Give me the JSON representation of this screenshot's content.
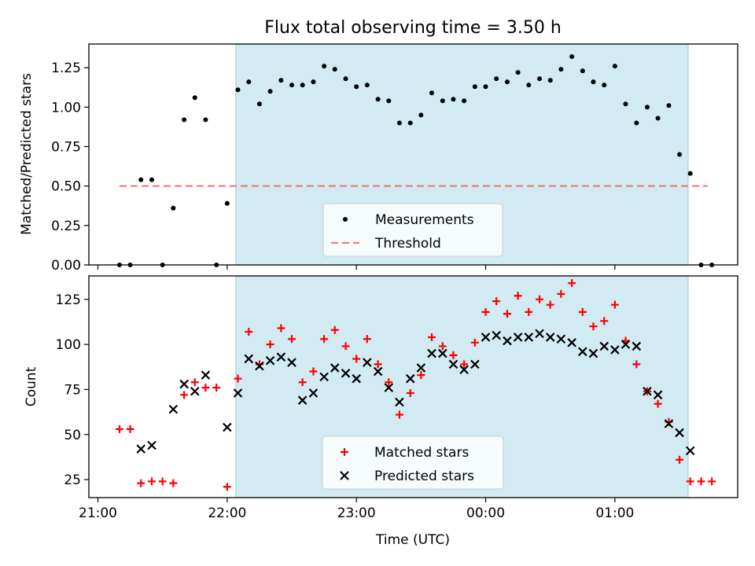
{
  "chart_data": [
    {
      "type": "scatter",
      "title": "Flux total observing time = 3.50 h",
      "xlabel": "",
      "ylabel": "Matched/Predicted stars",
      "xlim_hours": [
        20.93,
        25.95
      ],
      "ylim": [
        0,
        1.4
      ],
      "yticks": [
        0.0,
        0.25,
        0.5,
        0.75,
        1.0,
        1.25
      ],
      "ytick_labels": [
        "0.00",
        "0.25",
        "0.50",
        "0.75",
        "1.00",
        "1.25"
      ],
      "observing_window_hours": [
        22.067,
        25.567
      ],
      "threshold": {
        "name": "Threshold",
        "value": 0.5,
        "x_range_hours": [
          21.167,
          25.717
        ],
        "color": "#f08080"
      },
      "legend": {
        "position": "lower-center",
        "entries": [
          "Measurements",
          "Threshold"
        ]
      },
      "series": [
        {
          "name": "Measurements",
          "marker": "dot",
          "color": "#000000",
          "x": [
            21.167,
            21.25,
            21.333,
            21.417,
            21.5,
            21.583,
            21.667,
            21.75,
            21.833,
            21.917,
            22.0,
            22.083,
            22.167,
            22.25,
            22.333,
            22.417,
            22.5,
            22.583,
            22.667,
            22.75,
            22.833,
            22.917,
            23.0,
            23.083,
            23.167,
            23.25,
            23.333,
            23.417,
            23.5,
            23.583,
            23.667,
            23.75,
            23.833,
            23.917,
            24.0,
            24.083,
            24.167,
            24.25,
            24.333,
            24.417,
            24.5,
            24.583,
            24.667,
            24.75,
            24.833,
            24.917,
            25.0,
            25.083,
            25.167,
            25.25,
            25.333,
            25.417,
            25.5,
            25.583,
            25.667,
            25.75
          ],
          "y": [
            0.0,
            0.0,
            0.54,
            0.54,
            0.0,
            0.36,
            0.92,
            1.06,
            0.92,
            0.0,
            0.39,
            1.11,
            1.16,
            1.02,
            1.1,
            1.17,
            1.14,
            1.14,
            1.16,
            1.26,
            1.24,
            1.18,
            1.13,
            1.14,
            1.05,
            1.04,
            0.9,
            0.9,
            0.95,
            1.09,
            1.04,
            1.05,
            1.04,
            1.13,
            1.13,
            1.18,
            1.16,
            1.22,
            1.14,
            1.18,
            1.17,
            1.24,
            1.32,
            1.23,
            1.16,
            1.14,
            1.26,
            1.02,
            0.9,
            1.0,
            0.93,
            1.01,
            0.7,
            0.58,
            0.0,
            0.0
          ]
        }
      ]
    },
    {
      "type": "scatter",
      "title": "",
      "xlabel": "Time (UTC)",
      "ylabel": "Count",
      "xlim_hours": [
        20.93,
        25.95
      ],
      "ylim": [
        15,
        138
      ],
      "xticks_hours": [
        21,
        22,
        23,
        24,
        25
      ],
      "xtick_labels": [
        "21:00",
        "22:00",
        "23:00",
        "00:00",
        "01:00"
      ],
      "yticks": [
        25,
        50,
        75,
        100,
        125
      ],
      "ytick_labels": [
        "25",
        "50",
        "75",
        "100",
        "125"
      ],
      "observing_window_hours": [
        22.067,
        25.567
      ],
      "legend": {
        "position": "lower-center",
        "entries": [
          "Matched stars",
          "Predicted stars"
        ]
      },
      "series": [
        {
          "name": "Matched stars",
          "marker": "plus",
          "color": "#ff0000",
          "x": [
            21.167,
            21.25,
            21.333,
            21.417,
            21.5,
            21.583,
            21.667,
            21.75,
            21.833,
            21.917,
            22.0,
            22.083,
            22.167,
            22.25,
            22.333,
            22.417,
            22.5,
            22.583,
            22.667,
            22.75,
            22.833,
            22.917,
            23.0,
            23.083,
            23.167,
            23.25,
            23.333,
            23.417,
            23.5,
            23.583,
            23.667,
            23.75,
            23.833,
            23.917,
            24.0,
            24.083,
            24.167,
            24.25,
            24.333,
            24.417,
            24.5,
            24.583,
            24.667,
            24.75,
            24.833,
            24.917,
            25.0,
            25.083,
            25.167,
            25.25,
            25.333,
            25.417,
            25.5,
            25.583,
            25.667,
            25.75
          ],
          "y": [
            53,
            53,
            23,
            24,
            24,
            23,
            72,
            79,
            76,
            76,
            21,
            81,
            107,
            89,
            100,
            109,
            103,
            79,
            85,
            103,
            108,
            99,
            92,
            103,
            89,
            79,
            61,
            73,
            83,
            104,
            99,
            94,
            89,
            101,
            118,
            124,
            117,
            127,
            118,
            125,
            122,
            128,
            134,
            118,
            110,
            113,
            122,
            102,
            89,
            74,
            67,
            57,
            36,
            24,
            24,
            24
          ]
        },
        {
          "name": "Predicted stars",
          "marker": "x",
          "color": "#000000",
          "x": [
            21.333,
            21.417,
            21.583,
            21.667,
            21.75,
            21.833,
            22.0,
            22.083,
            22.167,
            22.25,
            22.333,
            22.417,
            22.5,
            22.583,
            22.667,
            22.75,
            22.833,
            22.917,
            23.0,
            23.083,
            23.167,
            23.25,
            23.333,
            23.417,
            23.5,
            23.583,
            23.667,
            23.75,
            23.833,
            23.917,
            24.0,
            24.083,
            24.167,
            24.25,
            24.333,
            24.417,
            24.5,
            24.583,
            24.667,
            24.75,
            24.833,
            24.917,
            25.0,
            25.083,
            25.167,
            25.25,
            25.333,
            25.417,
            25.5,
            25.583
          ],
          "y": [
            42,
            44,
            64,
            78,
            74,
            83,
            54,
            73,
            92,
            88,
            91,
            93,
            90,
            69,
            73,
            82,
            87,
            84,
            81,
            90,
            85,
            76,
            68,
            81,
            87,
            95,
            95,
            89,
            86,
            89,
            104,
            105,
            102,
            104,
            104,
            106,
            104,
            103,
            101,
            96,
            95,
            99,
            97,
            100,
            99,
            74,
            72,
            56,
            51,
            41
          ]
        }
      ]
    }
  ]
}
